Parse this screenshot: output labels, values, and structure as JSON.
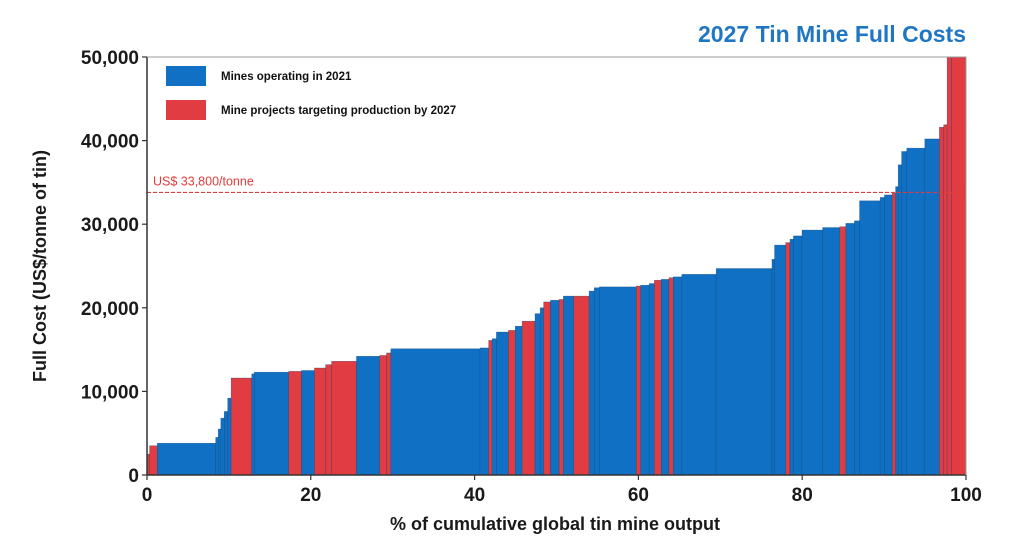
{
  "chart_data": {
    "type": "bar",
    "title": "2027 Tin Mine Full Costs",
    "xlabel": "% of cumulative global tin mine output",
    "ylabel": "Full Cost (US$/tonne of tin)",
    "xlim": [
      0,
      100
    ],
    "ylim": [
      0,
      50000
    ],
    "x_ticks": [
      "0",
      "20",
      "40",
      "60",
      "80",
      "100"
    ],
    "y_ticks": [
      "0",
      "10,000",
      "20,000",
      "30,000",
      "40,000",
      "50,000"
    ],
    "grid": false,
    "legend_position": "top-left",
    "colors": {
      "operating": "#1070c4",
      "project": "#e03c41",
      "reference": "#e23b3b",
      "title": "#1f77c4"
    },
    "series": [
      {
        "name": "Mines operating in 2021",
        "key": "operating"
      },
      {
        "name": "Mine projects targeting production by 2027",
        "key": "project"
      }
    ],
    "reference_line": {
      "value": 33800,
      "label": "US$ 33,800/tonne"
    },
    "segments": [
      [
        0.3,
        2500,
        "project"
      ],
      [
        0.9,
        3500,
        "project"
      ],
      [
        6.8,
        3800,
        "operating"
      ],
      [
        0.3,
        4500,
        "operating"
      ],
      [
        0.3,
        5500,
        "operating"
      ],
      [
        0.4,
        6800,
        "operating"
      ],
      [
        0.4,
        7600,
        "operating"
      ],
      [
        0.4,
        9200,
        "operating"
      ],
      [
        2.4,
        11600,
        "project"
      ],
      [
        0.3,
        12100,
        "operating"
      ],
      [
        4.0,
        12300,
        "operating"
      ],
      [
        1.5,
        12400,
        "project"
      ],
      [
        1.5,
        12500,
        "operating"
      ],
      [
        1.3,
        12800,
        "project"
      ],
      [
        0.7,
        13200,
        "project"
      ],
      [
        2.9,
        13600,
        "project"
      ],
      [
        2.7,
        14200,
        "operating"
      ],
      [
        0.8,
        14300,
        "project"
      ],
      [
        0.5,
        14600,
        "project"
      ],
      [
        10.4,
        15100,
        "operating"
      ],
      [
        1.0,
        15200,
        "operating"
      ],
      [
        0.4,
        16100,
        "project"
      ],
      [
        0.5,
        16300,
        "operating"
      ],
      [
        1.4,
        17100,
        "operating"
      ],
      [
        0.8,
        17300,
        "project"
      ],
      [
        0.8,
        17800,
        "operating"
      ],
      [
        1.5,
        18400,
        "project"
      ],
      [
        0.6,
        19300,
        "operating"
      ],
      [
        0.4,
        20000,
        "operating"
      ],
      [
        0.8,
        20700,
        "project"
      ],
      [
        1.0,
        20900,
        "operating"
      ],
      [
        0.5,
        21000,
        "project"
      ],
      [
        1.2,
        21400,
        "operating"
      ],
      [
        1.8,
        21400,
        "project"
      ],
      [
        0.6,
        22000,
        "operating"
      ],
      [
        0.6,
        22400,
        "operating"
      ],
      [
        4.3,
        22500,
        "operating"
      ],
      [
        0.5,
        22600,
        "project"
      ],
      [
        1.0,
        22700,
        "operating"
      ],
      [
        0.6,
        22900,
        "operating"
      ],
      [
        0.8,
        23300,
        "project"
      ],
      [
        0.9,
        23400,
        "operating"
      ],
      [
        0.5,
        23600,
        "project"
      ],
      [
        1.0,
        23700,
        "operating"
      ],
      [
        4.0,
        24000,
        "operating"
      ],
      [
        6.5,
        24700,
        "operating"
      ],
      [
        0.3,
        25800,
        "operating"
      ],
      [
        1.3,
        27500,
        "operating"
      ],
      [
        0.5,
        27800,
        "project"
      ],
      [
        0.4,
        28200,
        "operating"
      ],
      [
        1.0,
        28600,
        "operating"
      ],
      [
        2.4,
        29300,
        "operating"
      ],
      [
        2.0,
        29600,
        "operating"
      ],
      [
        0.7,
        29700,
        "project"
      ],
      [
        1.0,
        30100,
        "operating"
      ],
      [
        0.6,
        30400,
        "operating"
      ],
      [
        2.4,
        32800,
        "operating"
      ],
      [
        0.5,
        33200,
        "operating"
      ],
      [
        0.9,
        33500,
        "operating"
      ],
      [
        0.4,
        33700,
        "project"
      ],
      [
        0.3,
        34500,
        "operating"
      ],
      [
        0.4,
        37100,
        "operating"
      ],
      [
        0.6,
        38700,
        "operating"
      ],
      [
        2.1,
        39100,
        "operating"
      ],
      [
        1.7,
        40200,
        "operating"
      ],
      [
        0.5,
        41600,
        "project"
      ],
      [
        0.4,
        41900,
        "project"
      ],
      [
        0.5,
        50000,
        "project"
      ],
      [
        1.7,
        50000,
        "project"
      ]
    ]
  }
}
